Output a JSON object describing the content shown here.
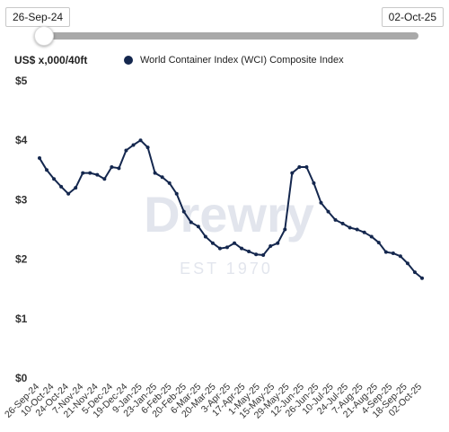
{
  "range": {
    "start": "26-Sep-24",
    "end": "02-Oct-25"
  },
  "unit_label": "US$ x,000/40ft",
  "watermark": {
    "brand": "Drewry",
    "est": "EST 1970"
  },
  "chart_data": {
    "type": "line",
    "title": "",
    "xlabel": "",
    "ylabel": "US$ x,000/40ft",
    "ylim": [
      0,
      5
    ],
    "yticks": [
      "$0",
      "$1",
      "$2",
      "$3",
      "$4",
      "$5"
    ],
    "grid": false,
    "legend": "top",
    "x_tick_labels": [
      "26-Sep-24",
      "10-Oct-24",
      "24-Oct-24",
      "7-Nov-24",
      "21-Nov-24",
      "5-Dec-24",
      "19-Dec-24",
      "9-Jan-25",
      "23-Jan-25",
      "6-Feb-25",
      "20-Feb-25",
      "6-Mar-25",
      "20-Mar-25",
      "3-Apr-25",
      "17-Apr-25",
      "1-May-25",
      "15-May-25",
      "29-May-25",
      "12-Jun-25",
      "26-Jun-25",
      "10-Jul-25",
      "24-Jul-25",
      "7-Aug-25",
      "21-Aug-25",
      "4-Sep-25",
      "18-Sep-25",
      "02-Oct-25"
    ],
    "series": [
      {
        "name": "World Container Index (WCI) Composite Index",
        "color": "#14274e",
        "values": [
          3.7,
          3.5,
          3.35,
          3.22,
          3.1,
          3.2,
          3.45,
          3.45,
          3.42,
          3.35,
          3.55,
          3.53,
          3.83,
          3.92,
          4.0,
          3.88,
          3.45,
          3.38,
          3.28,
          3.1,
          2.8,
          2.62,
          2.55,
          2.38,
          2.27,
          2.18,
          2.2,
          2.27,
          2.18,
          2.13,
          2.08,
          2.07,
          2.22,
          2.27,
          2.5,
          3.45,
          3.55,
          3.55,
          3.28,
          2.95,
          2.8,
          2.66,
          2.6,
          2.53,
          2.5,
          2.45,
          2.38,
          2.28,
          2.12,
          2.1,
          2.05,
          1.93,
          1.78,
          1.68
        ]
      }
    ]
  }
}
